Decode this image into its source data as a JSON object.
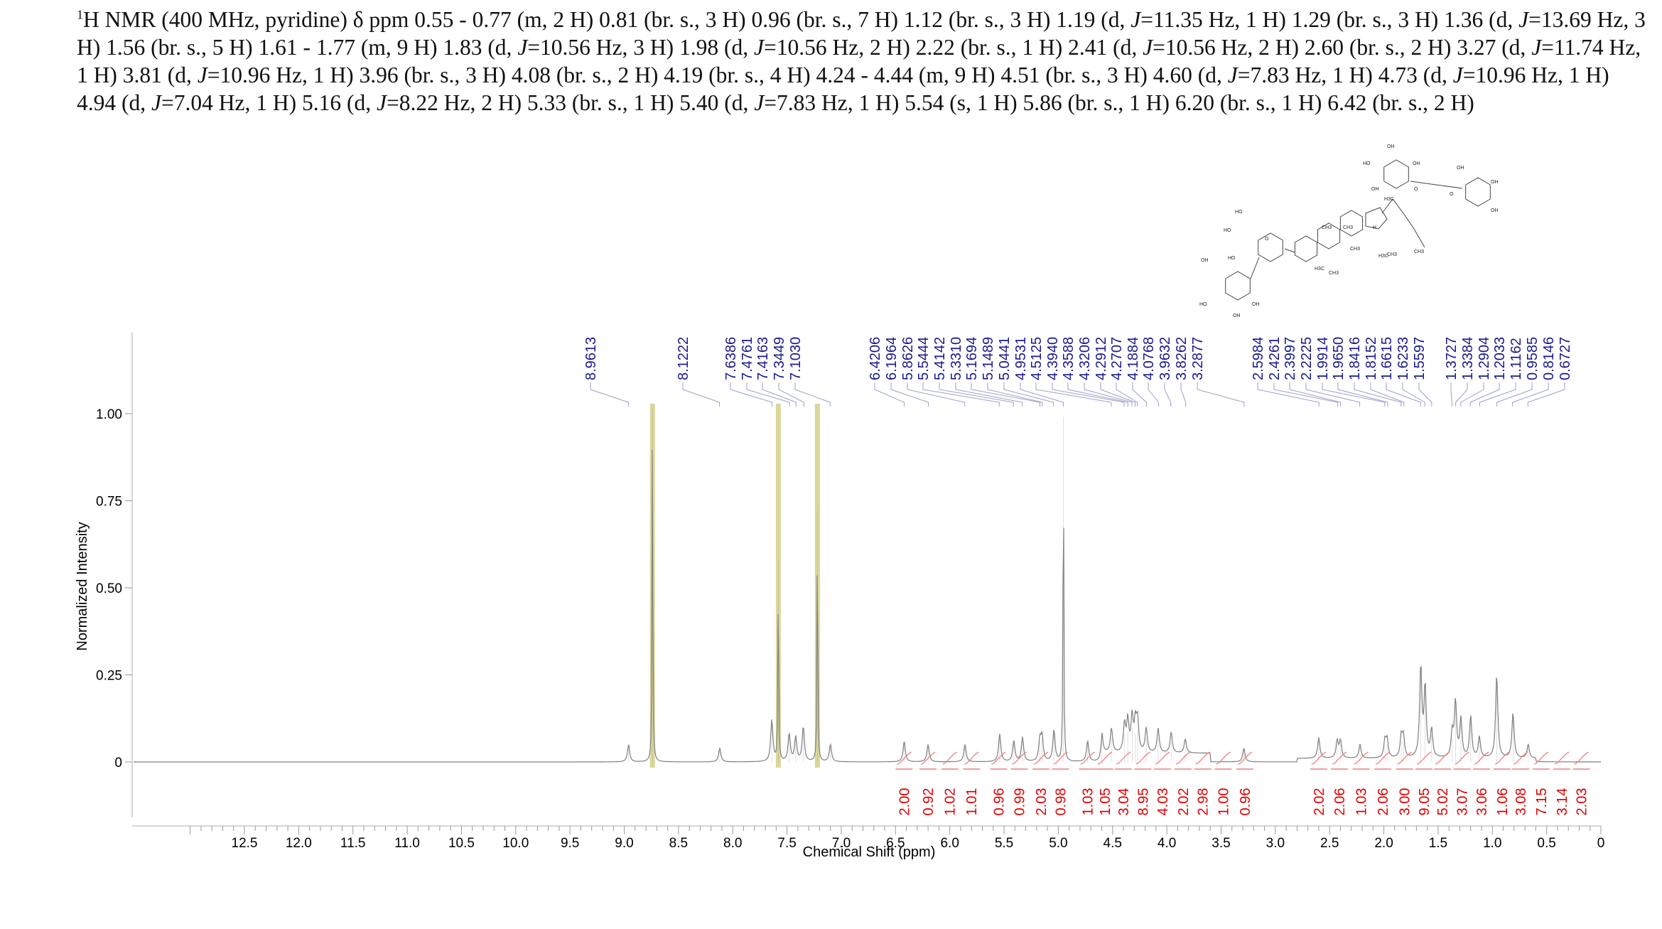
{
  "header": {
    "nucleus_sup": "1",
    "text_parts": [
      {
        "t": "H NMR (400 MHz, pyridine) δ ppm 0.55 - 0.77 (m, 2 H) 0.81 (br. s., 3 H) 0.96 (br. s., 7 H) 1.12 (br. s., 3 H) 1.19 (d, ",
        "i": false
      },
      {
        "t": "J",
        "i": true
      },
      {
        "t": "=11.35 Hz, 1 H) 1.29 (br. s., 3 H) 1.36 (d, ",
        "i": false
      },
      {
        "t": "J",
        "i": true
      },
      {
        "t": "=13.69 Hz, 3 H) 1.56 (br. s., 5 H) 1.61 - 1.77 (m, 9 H) 1.83 (d, ",
        "i": false
      },
      {
        "t": "J",
        "i": true
      },
      {
        "t": "=10.56 Hz, 3 H) 1.98 (d, ",
        "i": false
      },
      {
        "t": "J",
        "i": true
      },
      {
        "t": "=10.56 Hz, 2 H) 2.22 (br. s., 1 H) 2.41 (d, ",
        "i": false
      },
      {
        "t": "J",
        "i": true
      },
      {
        "t": "=10.56 Hz, 2 H) 2.60 (br. s., 2 H) 3.27 (d, ",
        "i": false
      },
      {
        "t": "J",
        "i": true
      },
      {
        "t": "=11.74 Hz, 1 H) 3.81 (d, ",
        "i": false
      },
      {
        "t": "J",
        "i": true
      },
      {
        "t": "=10.96 Hz, 1 H) 3.96 (br. s., 3 H) 4.08 (br. s., 2 H) 4.19 (br. s., 4 H) 4.24 - 4.44 (m, 9 H) 4.51 (br. s., 3 H) 4.60 (d, ",
        "i": false
      },
      {
        "t": "J",
        "i": true
      },
      {
        "t": "=7.83 Hz, 1 H) 4.73 (d, ",
        "i": false
      },
      {
        "t": "J",
        "i": true
      },
      {
        "t": "=10.96 Hz, 1 H) 4.94 (d, ",
        "i": false
      },
      {
        "t": "J",
        "i": true
      },
      {
        "t": "=7.04 Hz, 1 H) 5.16 (d, ",
        "i": false
      },
      {
        "t": "J",
        "i": true
      },
      {
        "t": "=8.22 Hz, 2 H) 5.33 (br. s., 1 H) 5.40 (d, ",
        "i": false
      },
      {
        "t": "J",
        "i": true
      },
      {
        "t": "=7.83 Hz, 1 H) 5.54 (s, 1 H) 5.86 (br. s., 1 H) 6.20 (br. s., 1 H) 6.42 (br. s., 2 H)",
        "i": false
      }
    ]
  },
  "chart_data": {
    "type": "line",
    "xlabel": "Chemical Shift (ppm)",
    "ylabel": "Normalized Intensity",
    "xlim": [
      13.0,
      0.0
    ],
    "ylim": [
      -0.15,
      1.2
    ],
    "x_ticks": [
      "12.5",
      "12.0",
      "11.5",
      "11.0",
      "10.5",
      "10.0",
      "9.5",
      "9.0",
      "8.5",
      "8.0",
      "7.5",
      "7.0",
      "6.5",
      "6.0",
      "5.5",
      "5.0",
      "4.5",
      "4.0",
      "3.5",
      "3.0",
      "2.5",
      "2.0",
      "1.5",
      "1.0",
      "0.5",
      "0"
    ],
    "y_ticks": [
      "1.00",
      "0.75",
      "0.50",
      "0.25",
      "0"
    ],
    "solvent_regions": [
      8.74,
      7.58,
      7.22
    ],
    "peaks": [
      {
        "x": 8.74,
        "y": 1.02
      },
      {
        "x": 7.58,
        "y": 0.58
      },
      {
        "x": 7.22,
        "y": 0.72
      },
      {
        "x": 8.96,
        "y": 0.05
      },
      {
        "x": 8.12,
        "y": 0.04
      },
      {
        "x": 7.64,
        "y": 0.12
      },
      {
        "x": 7.48,
        "y": 0.08
      },
      {
        "x": 7.42,
        "y": 0.07
      },
      {
        "x": 7.35,
        "y": 0.1
      },
      {
        "x": 7.1,
        "y": 0.05
      },
      {
        "x": 6.42,
        "y": 0.06
      },
      {
        "x": 6.2,
        "y": 0.05
      },
      {
        "x": 5.86,
        "y": 0.05
      },
      {
        "x": 5.54,
        "y": 0.08
      },
      {
        "x": 5.41,
        "y": 0.06
      },
      {
        "x": 5.33,
        "y": 0.07
      },
      {
        "x": 5.17,
        "y": 0.06
      },
      {
        "x": 5.15,
        "y": 0.07
      },
      {
        "x": 5.04,
        "y": 0.09
      },
      {
        "x": 4.953,
        "y": 0.99
      },
      {
        "x": 4.73,
        "y": 0.06
      },
      {
        "x": 4.6,
        "y": 0.06
      },
      {
        "x": 4.51,
        "y": 0.07
      },
      {
        "x": 4.39,
        "y": 0.08
      },
      {
        "x": 4.36,
        "y": 0.09
      },
      {
        "x": 4.32,
        "y": 0.1
      },
      {
        "x": 4.29,
        "y": 0.08
      },
      {
        "x": 4.27,
        "y": 0.09
      },
      {
        "x": 4.19,
        "y": 0.07
      },
      {
        "x": 4.08,
        "y": 0.07
      },
      {
        "x": 3.96,
        "y": 0.06
      },
      {
        "x": 3.83,
        "y": 0.04
      },
      {
        "x": 3.29,
        "y": 0.04
      },
      {
        "x": 2.6,
        "y": 0.06
      },
      {
        "x": 2.43,
        "y": 0.05
      },
      {
        "x": 2.4,
        "y": 0.05
      },
      {
        "x": 2.22,
        "y": 0.04
      },
      {
        "x": 1.99,
        "y": 0.05
      },
      {
        "x": 1.97,
        "y": 0.05
      },
      {
        "x": 1.84,
        "y": 0.06
      },
      {
        "x": 1.82,
        "y": 0.06
      },
      {
        "x": 1.66,
        "y": 0.26
      },
      {
        "x": 1.62,
        "y": 0.2
      },
      {
        "x": 1.56,
        "y": 0.08
      },
      {
        "x": 1.37,
        "y": 0.07
      },
      {
        "x": 1.34,
        "y": 0.16
      },
      {
        "x": 1.29,
        "y": 0.11
      },
      {
        "x": 1.2,
        "y": 0.12
      },
      {
        "x": 1.12,
        "y": 0.06
      },
      {
        "x": 0.96,
        "y": 0.24
      },
      {
        "x": 0.81,
        "y": 0.13
      },
      {
        "x": 0.67,
        "y": 0.04
      }
    ],
    "peak_labels": [
      "8.9613",
      "8.1222",
      "7.6386",
      "7.4761",
      "7.4163",
      "7.3449",
      "7.1030",
      "6.4206",
      "6.1964",
      "5.8626",
      "5.5444",
      "5.4142",
      "5.3310",
      "5.1694",
      "5.1489",
      "5.0441",
      "4.9531",
      "4.5125",
      "4.3940",
      "4.3588",
      "4.3206",
      "4.2912",
      "4.2707",
      "4.1884",
      "4.0768",
      "3.9632",
      "3.8262",
      "3.2877",
      "2.5984",
      "2.4261",
      "2.3997",
      "2.2225",
      "1.9914",
      "1.9650",
      "1.8416",
      "1.8152",
      "1.6615",
      "1.6233",
      "1.5597",
      "1.3727",
      "1.3384",
      "1.2904",
      "1.2033",
      "1.1162",
      "0.9585",
      "0.8146",
      "0.6727"
    ],
    "integrals": [
      {
        "label": "2.00",
        "x": 6.42
      },
      {
        "label": "0.92",
        "x": 6.2
      },
      {
        "label": "1.02",
        "x": 6.0
      },
      {
        "label": "1.01",
        "x": 5.8
      },
      {
        "label": "0.96",
        "x": 5.55
      },
      {
        "label": "0.99",
        "x": 5.36
      },
      {
        "label": "2.03",
        "x": 5.16
      },
      {
        "label": "0.98",
        "x": 4.98
      },
      {
        "label": "1.03",
        "x": 4.73
      },
      {
        "label": "1.05",
        "x": 4.57
      },
      {
        "label": "3.04",
        "x": 4.4
      },
      {
        "label": "8.95",
        "x": 4.22
      },
      {
        "label": "4.03",
        "x": 4.04
      },
      {
        "label": "2.02",
        "x": 3.85
      },
      {
        "label": "2.98",
        "x": 3.67
      },
      {
        "label": "1.00",
        "x": 3.48
      },
      {
        "label": "0.96",
        "x": 3.28
      },
      {
        "label": "2.02",
        "x": 2.6
      },
      {
        "label": "2.06",
        "x": 2.41
      },
      {
        "label": "1.03",
        "x": 2.21
      },
      {
        "label": "2.06",
        "x": 2.01
      },
      {
        "label": "3.00",
        "x": 1.81
      },
      {
        "label": "9.05",
        "x": 1.63
      },
      {
        "label": "5.02",
        "x": 1.46
      },
      {
        "label": "3.07",
        "x": 1.28
      },
      {
        "label": "3.06",
        "x": 1.1
      },
      {
        "label": "1.06",
        "x": 0.91
      },
      {
        "label": "3.08",
        "x": 0.74
      },
      {
        "label": "7.15",
        "x": 0.55
      },
      {
        "label": "3.14",
        "x": 0.36
      },
      {
        "label": "2.03",
        "x": 0.18
      }
    ]
  },
  "structure_labels": {
    "oh": "OH",
    "ho": "HO",
    "o": "O",
    "h": "H",
    "ch3": "CH3",
    "h3c": "H3C"
  }
}
